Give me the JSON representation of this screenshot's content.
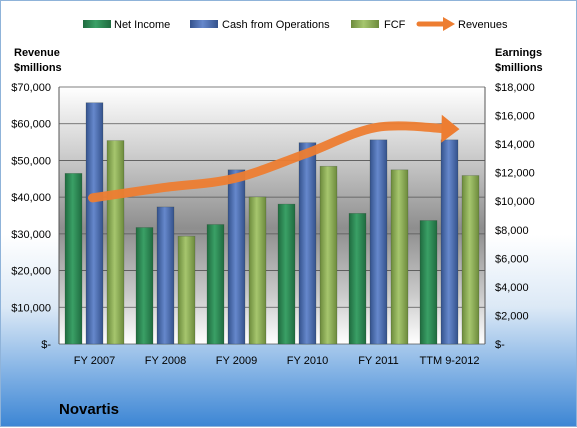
{
  "company": "Novartis",
  "chart_data": {
    "type": "bar",
    "categories": [
      "FY 2007",
      "FY 2008",
      "FY 2009",
      "FY 2010",
      "FY 2011",
      "TTM 9-2012"
    ],
    "left_axis": {
      "title_line1": "Revenue",
      "title_line2": "$millions",
      "ylim": [
        0,
        70000
      ],
      "tick_labels": [
        "$-",
        "$10,000",
        "$20,000",
        "$30,000",
        "$40,000",
        "$50,000",
        "$60,000",
        "$70,000"
      ]
    },
    "right_axis": {
      "title_line1": "Earnings",
      "title_line2": "$millions",
      "ylim": [
        0,
        18000
      ],
      "tick_labels": [
        "$-",
        "$2,000",
        "$4,000",
        "$6,000",
        "$8,000",
        "$10,000",
        "$12,000",
        "$14,000",
        "$16,000",
        "$18,000"
      ]
    },
    "series": [
      {
        "name": "Net Income",
        "axis": "right",
        "kind": "bar",
        "color": "#2e8b57",
        "values": [
          11950,
          8160,
          8370,
          9800,
          9150,
          8650
        ]
      },
      {
        "name": "Cash from Operations",
        "axis": "right",
        "kind": "bar",
        "color": "#4a6fb5",
        "values": [
          16900,
          9600,
          12200,
          14100,
          14300,
          14300
        ]
      },
      {
        "name": "FCF",
        "axis": "right",
        "kind": "bar",
        "color": "#8fb35a",
        "values": [
          14250,
          7550,
          10300,
          12450,
          12200,
          11800
        ]
      },
      {
        "name": "Revenues",
        "axis": "left",
        "kind": "line",
        "color": "#ed7d31",
        "values": [
          39800,
          42600,
          45100,
          51800,
          59000,
          58600
        ]
      }
    ],
    "grid": true,
    "legend_position": "top"
  }
}
